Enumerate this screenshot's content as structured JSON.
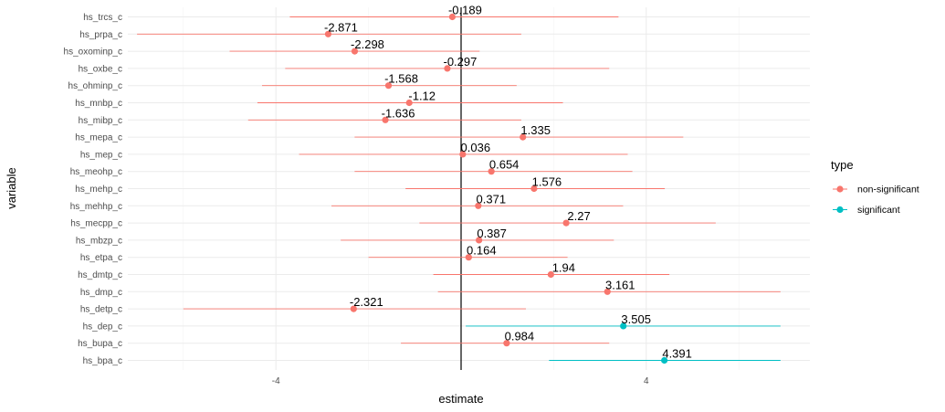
{
  "chart_data": {
    "type": "scatter",
    "xlabel": "estimate",
    "ylabel": "variable",
    "xlim": [
      -7.5,
      7.5
    ],
    "x_ticks": [
      -4,
      0,
      4
    ],
    "x_tick_labels": [
      "-4",
      "",
      "4"
    ],
    "grid": true,
    "reference_line_x": 0,
    "legend": {
      "title": "type",
      "position": "right",
      "entries": [
        {
          "key": "non-significant",
          "label": "non-significant",
          "color": "#F8766D"
        },
        {
          "key": "significant",
          "label": "significant",
          "color": "#00BFC4"
        }
      ]
    },
    "rows": [
      {
        "variable": "hs_trcs_c",
        "estimate": -0.189,
        "low": -3.7,
        "high": 3.4,
        "type": "non-significant",
        "label": "-0.189"
      },
      {
        "variable": "hs_prpa_c",
        "estimate": -2.871,
        "low": -7.0,
        "high": 1.3,
        "type": "non-significant",
        "label": "-2.871"
      },
      {
        "variable": "hs_oxominp_c",
        "estimate": -2.298,
        "low": -5.0,
        "high": 0.4,
        "type": "non-significant",
        "label": "-2.298"
      },
      {
        "variable": "hs_oxbe_c",
        "estimate": -0.297,
        "low": -3.8,
        "high": 3.2,
        "type": "non-significant",
        "label": "-0.297"
      },
      {
        "variable": "hs_ohminp_c",
        "estimate": -1.568,
        "low": -4.3,
        "high": 1.2,
        "type": "non-significant",
        "label": "-1.568"
      },
      {
        "variable": "hs_mnbp_c",
        "estimate": -1.12,
        "low": -4.4,
        "high": 2.2,
        "type": "non-significant",
        "label": "-1.12"
      },
      {
        "variable": "hs_mibp_c",
        "estimate": -1.636,
        "low": -4.6,
        "high": 1.3,
        "type": "non-significant",
        "label": "-1.636"
      },
      {
        "variable": "hs_mepa_c",
        "estimate": 1.335,
        "low": -2.3,
        "high": 4.8,
        "type": "non-significant",
        "label": "1.335"
      },
      {
        "variable": "hs_mep_c",
        "estimate": 0.036,
        "low": -3.5,
        "high": 3.6,
        "type": "non-significant",
        "label": "0.036"
      },
      {
        "variable": "hs_meohp_c",
        "estimate": 0.654,
        "low": -2.3,
        "high": 3.7,
        "type": "non-significant",
        "label": "0.654"
      },
      {
        "variable": "hs_mehp_c",
        "estimate": 1.576,
        "low": -1.2,
        "high": 4.4,
        "type": "non-significant",
        "label": "1.576"
      },
      {
        "variable": "hs_mehhp_c",
        "estimate": 0.371,
        "low": -2.8,
        "high": 3.5,
        "type": "non-significant",
        "label": "0.371"
      },
      {
        "variable": "hs_mecpp_c",
        "estimate": 2.27,
        "low": -0.9,
        "high": 5.5,
        "type": "non-significant",
        "label": "2.27"
      },
      {
        "variable": "hs_mbzp_c",
        "estimate": 0.387,
        "low": -2.6,
        "high": 3.3,
        "type": "non-significant",
        "label": "0.387"
      },
      {
        "variable": "hs_etpa_c",
        "estimate": 0.164,
        "low": -2.0,
        "high": 2.3,
        "type": "non-significant",
        "label": "0.164"
      },
      {
        "variable": "hs_dmtp_c",
        "estimate": 1.94,
        "low": -0.6,
        "high": 4.5,
        "type": "non-significant",
        "label": "1.94"
      },
      {
        "variable": "hs_dmp_c",
        "estimate": 3.161,
        "low": -0.5,
        "high": 6.9,
        "type": "non-significant",
        "label": "3.161"
      },
      {
        "variable": "hs_detp_c",
        "estimate": -2.321,
        "low": -6.0,
        "high": 1.4,
        "type": "non-significant",
        "label": "-2.321"
      },
      {
        "variable": "hs_dep_c",
        "estimate": 3.505,
        "low": 0.1,
        "high": 6.9,
        "type": "significant",
        "label": "3.505"
      },
      {
        "variable": "hs_bupa_c",
        "estimate": 0.984,
        "low": -1.3,
        "high": 3.2,
        "type": "non-significant",
        "label": "0.984"
      },
      {
        "variable": "hs_bpa_c",
        "estimate": 4.391,
        "low": 1.9,
        "high": 6.9,
        "type": "significant",
        "label": "4.391"
      }
    ]
  }
}
